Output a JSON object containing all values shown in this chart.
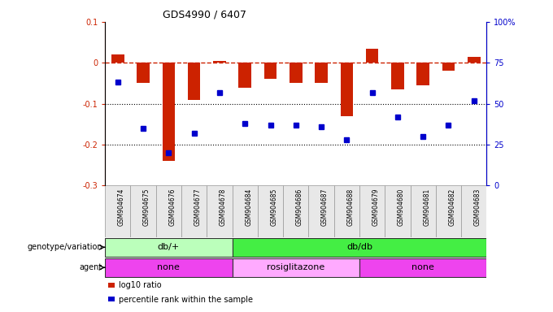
{
  "title": "GDS4990 / 6407",
  "samples": [
    "GSM904674",
    "GSM904675",
    "GSM904676",
    "GSM904677",
    "GSM904678",
    "GSM904684",
    "GSM904685",
    "GSM904686",
    "GSM904687",
    "GSM904688",
    "GSM904679",
    "GSM904680",
    "GSM904681",
    "GSM904682",
    "GSM904683"
  ],
  "log10_ratio": [
    0.02,
    -0.05,
    -0.24,
    -0.09,
    0.005,
    -0.06,
    -0.04,
    -0.05,
    -0.05,
    -0.13,
    0.035,
    -0.065,
    -0.055,
    -0.02,
    0.015
  ],
  "percentile_rank": [
    63,
    35,
    20,
    32,
    57,
    38,
    37,
    37,
    36,
    28,
    57,
    42,
    30,
    37,
    52
  ],
  "ylim_left": [
    -0.3,
    0.1
  ],
  "ylim_right": [
    0,
    100
  ],
  "bar_color": "#cc2200",
  "dot_color": "#0000cc",
  "dashed_line_color": "#cc2200",
  "dotted_line_color": "#000000",
  "genotype_groups": [
    {
      "label": "db/+",
      "start": 0,
      "end": 5,
      "color": "#bbffbb"
    },
    {
      "label": "db/db",
      "start": 5,
      "end": 15,
      "color": "#44ee44"
    }
  ],
  "agent_groups": [
    {
      "label": "none",
      "start": 0,
      "end": 5,
      "color": "#ee44ee"
    },
    {
      "label": "rosiglitazone",
      "start": 5,
      "end": 10,
      "color": "#ffaaff"
    },
    {
      "label": "none",
      "start": 10,
      "end": 15,
      "color": "#ee44ee"
    }
  ],
  "legend_items": [
    {
      "color": "#cc2200",
      "label": "log10 ratio"
    },
    {
      "color": "#0000cc",
      "label": "percentile rank within the sample"
    }
  ],
  "title_fontsize": 9,
  "tick_fontsize": 7,
  "label_fontsize": 7,
  "sample_fontsize": 5.5,
  "group_fontsize": 8
}
